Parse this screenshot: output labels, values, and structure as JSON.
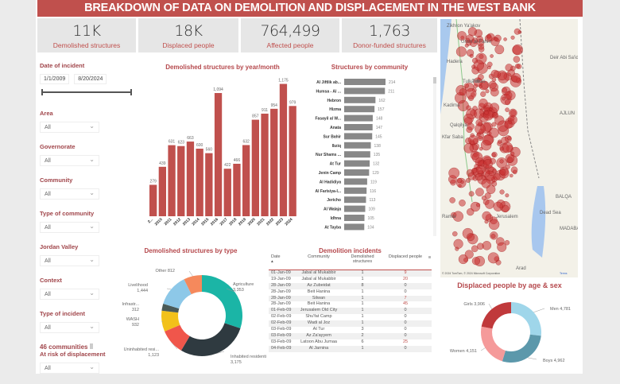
{
  "header": {
    "title": "BREAKDOWN OF DATA ON DEMOLITION AND DISPLACEMENT IN THE WEST BANK"
  },
  "kpis": [
    {
      "value": "11K",
      "label": "Demolished structures"
    },
    {
      "value": "18K",
      "label": "Displaced people"
    },
    {
      "value": "764,499",
      "label": "Affected people"
    },
    {
      "value": "1,763",
      "label": "Donor-funded structures"
    }
  ],
  "filters": {
    "date_label": "Date of incident",
    "date_start": "1/1/2009",
    "date_end": "8/20/2024",
    "dropdowns": [
      {
        "label": "Area",
        "value": "All"
      },
      {
        "label": "Governorate",
        "value": "All"
      },
      {
        "label": "Community",
        "value": "All"
      },
      {
        "label": "Type of community",
        "value": "All"
      },
      {
        "label": "Jordan Valley",
        "value": "All"
      },
      {
        "label": "Context",
        "value": "All"
      },
      {
        "label": "Type of incident",
        "value": "All"
      }
    ],
    "risk_label_1": "46 communities",
    "risk_label_2": "At risk of displacement",
    "risk_value": "All"
  },
  "chart_data": [
    {
      "type": "bar",
      "title": "Demolished structures by year/month",
      "categories": [
        "2...",
        "2010",
        "2011",
        "2012",
        "2013",
        "2014",
        "2015",
        "2016",
        "2017",
        "2018",
        "2019",
        "2020",
        "2021",
        "2022",
        "2023",
        "2024"
      ],
      "values": [
        279,
        439,
        631,
        623,
        663,
        600,
        560,
        1094,
        422,
        466,
        632,
        857,
        911,
        954,
        1175,
        979
      ],
      "value_labels": [
        "279",
        "439",
        "631",
        "623",
        "663",
        "600",
        "560",
        "1,094",
        "422",
        "466",
        "632",
        "857",
        "911",
        "954",
        "1,175",
        "979"
      ],
      "color": "#c0504d",
      "ylim": [
        0,
        1200
      ]
    },
    {
      "type": "bar",
      "orientation": "horizontal",
      "title": "Structures by community",
      "categories": [
        "Al Jiftlik ab...",
        "Humsa - Al ...",
        "Hebron",
        "Hizma",
        "Fasayil al W...",
        "Anata",
        "Sur Bahir",
        "Ibziq",
        "Nur Shams ...",
        "At Tur",
        "Jenin Camp",
        "Al Hadidiya",
        "Al Farisiya-I...",
        "Jericho",
        "Al Walaja",
        "Idhna",
        "At Tayba"
      ],
      "values": [
        214,
        211,
        162,
        157,
        148,
        147,
        145,
        138,
        135,
        132,
        129,
        119,
        116,
        113,
        109,
        105,
        104
      ],
      "color": "#888888",
      "xlim": [
        0,
        214
      ]
    },
    {
      "type": "pie",
      "title": "Demolished structures by type",
      "labels": [
        "Agriculture",
        "Inhabited residential",
        "Uninhabited resi...",
        "WASH",
        "Infrastr...",
        "Livelihood",
        "Other"
      ],
      "values": [
        3353,
        3175,
        1123,
        932,
        312,
        1444,
        812
      ],
      "value_labels": [
        "3,353",
        "3,175",
        "1,123",
        "932",
        "312",
        "1,444",
        "812"
      ],
      "colors": [
        "#1bb5a6",
        "#2f3a40",
        "#f0564b",
        "#f2c11a",
        "#4a5a57",
        "#8dc8e8",
        "#f5895c"
      ]
    },
    {
      "type": "pie",
      "title": "Displaced people by age & sex",
      "labels": [
        "Men",
        "Boys",
        "Women",
        "Girls"
      ],
      "values": [
        4781,
        4962,
        4151,
        3906
      ],
      "value_labels": [
        "4,781",
        "4,962",
        "4,151",
        "3,906"
      ],
      "colors": [
        "#9fd6ea",
        "#5c98ab",
        "#f59a9a",
        "#c0393b"
      ]
    }
  ],
  "table": {
    "title": "Demolition incidents",
    "columns": [
      "Date",
      "Community",
      "Demolished structures",
      "Displaced people"
    ],
    "rows": [
      [
        "01-Jan-09",
        "Jabal al Mukabbir",
        "1",
        "9"
      ],
      [
        "19-Jan-09",
        "Jabal al Mukabbir",
        "1",
        "20"
      ],
      [
        "28-Jan-09",
        "Az Zubeidat",
        "8",
        "0"
      ],
      [
        "28-Jan-09",
        "Beit Hanina",
        "1",
        "0"
      ],
      [
        "28-Jan-09",
        "Silwan",
        "1",
        "7"
      ],
      [
        "28-Jan-09",
        "Beit Hanina",
        "1",
        "45"
      ],
      [
        "01-Feb-09",
        "Jerusalem Old City",
        "1",
        "0"
      ],
      [
        "02-Feb-09",
        "Shu'fat Camp",
        "1",
        "0"
      ],
      [
        "02-Feb-09",
        "Wadi al Joz",
        "1",
        "0"
      ],
      [
        "03-Feb-09",
        "At Tur",
        "3",
        "0"
      ],
      [
        "03-Feb-09",
        "Az Za'ayyem",
        "2",
        "0"
      ],
      [
        "03-Feb-09",
        "Latoon Abu Jumaa",
        "6",
        "25"
      ],
      [
        "04-Feb-09",
        "Al Jarnina",
        "1",
        "0"
      ]
    ]
  },
  "map": {
    "place_labels": [
      "Zikhron Ya'akov",
      "Umm al-Fahm",
      "Hadera",
      "Tubas",
      "Tulkarm",
      "Kadima",
      "Qalqilya",
      "Kfar Saba",
      "Ramla",
      "Jerusalem",
      "Dead Sea",
      "Arad",
      "AJLUN",
      "BALQA",
      "MADABA",
      "Deir Abi Sa'id",
      "Mujib Biosphere Reserve"
    ],
    "attribution": "© 2024 TomTom, © 2024 Microsoft Corporation",
    "terms": "Terms"
  }
}
